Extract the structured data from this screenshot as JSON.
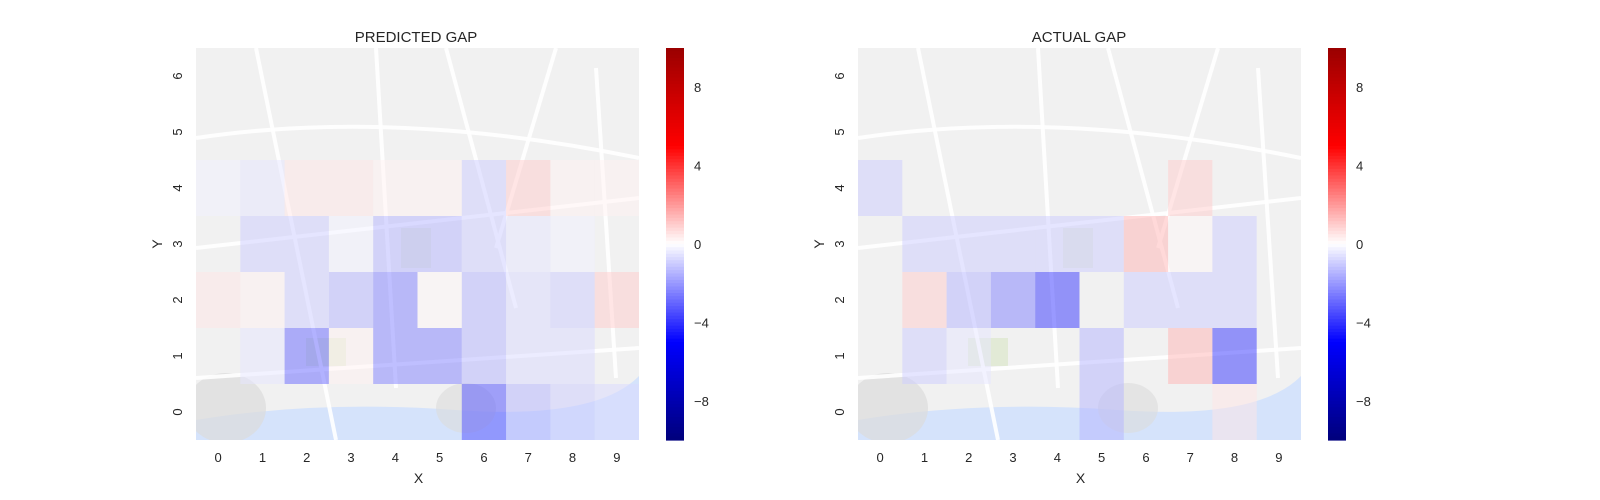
{
  "figure": {
    "colors": {
      "negative": "#0000ff",
      "positive": "#ff0000",
      "neutral": "#ffffff",
      "map_background": "#f1f1f1",
      "map_roads": "#ffffff",
      "map_water": "#d5e3fb",
      "map_parks": "#dfe8cf"
    }
  },
  "chart_data": [
    {
      "type": "heatmap",
      "title": "PREDICTED GAP",
      "xlabel": "X",
      "ylabel": "Y",
      "x": [
        "0",
        "1",
        "2",
        "3",
        "4",
        "5",
        "6",
        "7",
        "8",
        "9"
      ],
      "y": [
        "0",
        "1",
        "2",
        "3",
        "4",
        "5",
        "6"
      ],
      "colorscale": "seismic",
      "vmin": -10,
      "vmax": 10,
      "colorbar_ticks": [
        8,
        4,
        0,
        -4,
        -8
      ],
      "colorbar_tick_labels": [
        "8",
        "4",
        "0",
        "−4",
        "−8"
      ],
      "background": "street map",
      "cells": [
        {
          "x": 6,
          "y": 0,
          "value": -7
        },
        {
          "x": 7,
          "y": 0,
          "value": -3
        },
        {
          "x": 8,
          "y": 0,
          "value": -2
        },
        {
          "x": 9,
          "y": 0,
          "value": -1.5
        },
        {
          "x": 1,
          "y": 1,
          "value": -1
        },
        {
          "x": 2,
          "y": 1,
          "value": -6
        },
        {
          "x": 3,
          "y": 1,
          "value": 0.5
        },
        {
          "x": 4,
          "y": 1,
          "value": -5
        },
        {
          "x": 5,
          "y": 1,
          "value": -5
        },
        {
          "x": 6,
          "y": 1,
          "value": -3
        },
        {
          "x": 7,
          "y": 1,
          "value": -1.5
        },
        {
          "x": 8,
          "y": 1,
          "value": -1.5
        },
        {
          "x": 0,
          "y": 2,
          "value": 1
        },
        {
          "x": 1,
          "y": 2,
          "value": 0.5
        },
        {
          "x": 2,
          "y": 2,
          "value": -2
        },
        {
          "x": 3,
          "y": 2,
          "value": -3
        },
        {
          "x": 4,
          "y": 2,
          "value": -5
        },
        {
          "x": 5,
          "y": 2,
          "value": 0.3
        },
        {
          "x": 6,
          "y": 2,
          "value": -3
        },
        {
          "x": 7,
          "y": 2,
          "value": -1.5
        },
        {
          "x": 8,
          "y": 2,
          "value": -2
        },
        {
          "x": 9,
          "y": 2,
          "value": 2
        },
        {
          "x": 1,
          "y": 3,
          "value": -2
        },
        {
          "x": 2,
          "y": 3,
          "value": -2
        },
        {
          "x": 3,
          "y": 3,
          "value": -0.5
        },
        {
          "x": 4,
          "y": 3,
          "value": -3
        },
        {
          "x": 5,
          "y": 3,
          "value": -3
        },
        {
          "x": 6,
          "y": 3,
          "value": -2
        },
        {
          "x": 7,
          "y": 3,
          "value": -1
        },
        {
          "x": 8,
          "y": 3,
          "value": -0.5
        },
        {
          "x": 0,
          "y": 4,
          "value": -0.5
        },
        {
          "x": 1,
          "y": 4,
          "value": -1
        },
        {
          "x": 2,
          "y": 4,
          "value": 1
        },
        {
          "x": 3,
          "y": 4,
          "value": 1
        },
        {
          "x": 4,
          "y": 4,
          "value": 0.5
        },
        {
          "x": 5,
          "y": 4,
          "value": 0.5
        },
        {
          "x": 6,
          "y": 4,
          "value": -2
        },
        {
          "x": 7,
          "y": 4,
          "value": 2
        },
        {
          "x": 8,
          "y": 4,
          "value": 0.5
        },
        {
          "x": 9,
          "y": 4,
          "value": 0.5
        }
      ]
    },
    {
      "type": "heatmap",
      "title": "ACTUAL GAP",
      "xlabel": "X",
      "ylabel": "Y",
      "x": [
        "0",
        "1",
        "2",
        "3",
        "4",
        "5",
        "6",
        "7",
        "8",
        "9"
      ],
      "y": [
        "0",
        "1",
        "2",
        "3",
        "4",
        "5",
        "6"
      ],
      "colorscale": "seismic",
      "vmin": -10,
      "vmax": 10,
      "colorbar_ticks": [
        8,
        4,
        0,
        -4,
        -8
      ],
      "colorbar_tick_labels": [
        "8",
        "4",
        "0",
        "−4",
        "−8"
      ],
      "background": "street map",
      "cells": [
        {
          "x": 5,
          "y": 0,
          "value": -3
        },
        {
          "x": 8,
          "y": 0,
          "value": 1
        },
        {
          "x": 1,
          "y": 1,
          "value": -2
        },
        {
          "x": 2,
          "y": 1,
          "value": -1
        },
        {
          "x": 5,
          "y": 1,
          "value": -3
        },
        {
          "x": 7,
          "y": 1,
          "value": 3
        },
        {
          "x": 8,
          "y": 1,
          "value": -8
        },
        {
          "x": 1,
          "y": 2,
          "value": 2
        },
        {
          "x": 2,
          "y": 2,
          "value": -3
        },
        {
          "x": 3,
          "y": 2,
          "value": -5
        },
        {
          "x": 4,
          "y": 2,
          "value": -8
        },
        {
          "x": 6,
          "y": 2,
          "value": -2
        },
        {
          "x": 7,
          "y": 2,
          "value": -2
        },
        {
          "x": 8,
          "y": 2,
          "value": -2
        },
        {
          "x": 1,
          "y": 3,
          "value": -2
        },
        {
          "x": 2,
          "y": 3,
          "value": -2
        },
        {
          "x": 3,
          "y": 3,
          "value": -2
        },
        {
          "x": 4,
          "y": 3,
          "value": -2
        },
        {
          "x": 5,
          "y": 3,
          "value": -2
        },
        {
          "x": 6,
          "y": 3,
          "value": 3
        },
        {
          "x": 7,
          "y": 3,
          "value": 0.3
        },
        {
          "x": 8,
          "y": 3,
          "value": -2
        },
        {
          "x": 0,
          "y": 4,
          "value": -2
        },
        {
          "x": 7,
          "y": 4,
          "value": 2
        }
      ]
    }
  ]
}
